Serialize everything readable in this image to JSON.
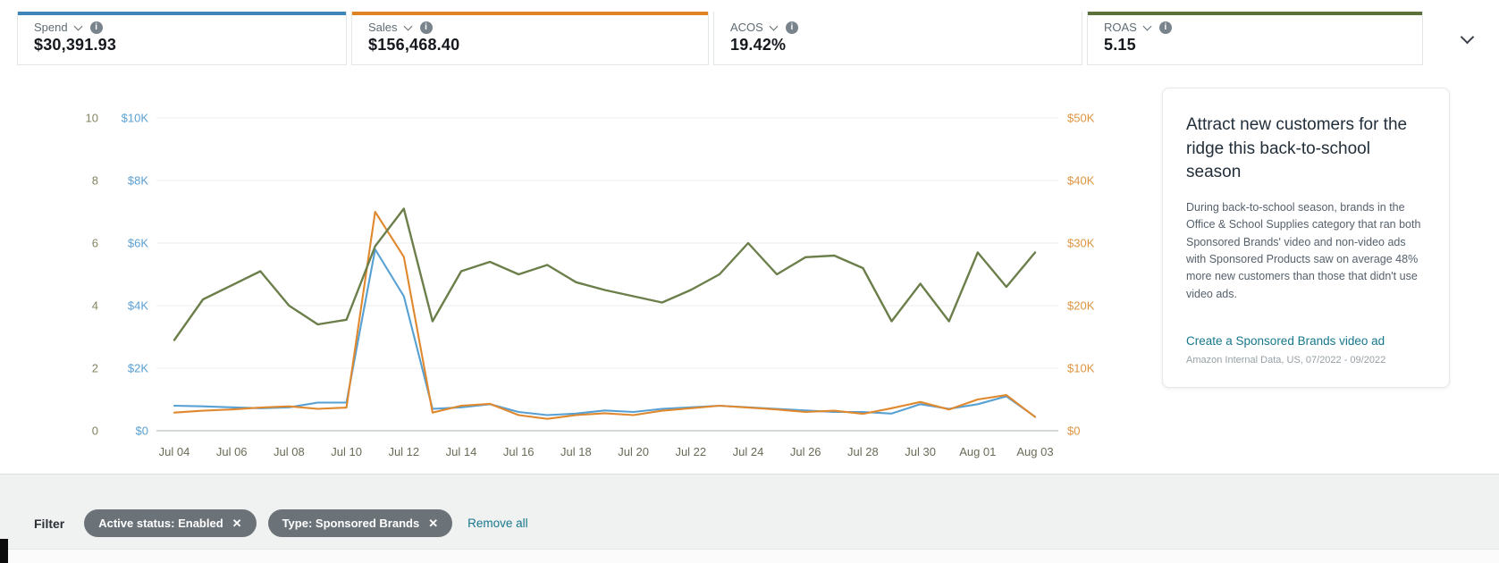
{
  "icons": {
    "close": "✕",
    "info": "i"
  },
  "metric_cards": [
    {
      "label": "Spend",
      "value": "$30,391.93",
      "accent": "#3d87b8"
    },
    {
      "label": "Sales",
      "value": "$156,468.40",
      "accent": "#e0821f"
    },
    {
      "label": "ACOS",
      "value": "19.42%",
      "accent": ""
    },
    {
      "label": "ROAS",
      "value": "5.15",
      "accent": "#5c7038"
    }
  ],
  "chart_data": {
    "type": "line",
    "x": [
      "Jul 04",
      "Jul 05",
      "Jul 06",
      "Jul 07",
      "Jul 08",
      "Jul 09",
      "Jul 10",
      "Jul 11",
      "Jul 12",
      "Jul 13",
      "Jul 14",
      "Jul 15",
      "Jul 16",
      "Jul 17",
      "Jul 18",
      "Jul 19",
      "Jul 20",
      "Jul 21",
      "Jul 22",
      "Jul 23",
      "Jul 24",
      "Jul 25",
      "Jul 26",
      "Jul 27",
      "Jul 28",
      "Jul 29",
      "Jul 30",
      "Jul 31",
      "Aug 01",
      "Aug 02",
      "Aug 03"
    ],
    "x_tick_labels": [
      "Jul 04",
      "Jul 06",
      "Jul 08",
      "Jul 10",
      "Jul 12",
      "Jul 14",
      "Jul 16",
      "Jul 18",
      "Jul 20",
      "Jul 22",
      "Jul 24",
      "Jul 26",
      "Jul 28",
      "Jul 30",
      "Aug 01",
      "Aug 03"
    ],
    "series": [
      {
        "name": "Spend",
        "axis": "left_currency",
        "color": "#56a0d3",
        "values": [
          800,
          780,
          750,
          720,
          750,
          900,
          900,
          5800,
          4300,
          700,
          750,
          850,
          600,
          500,
          550,
          650,
          600,
          700,
          750,
          800,
          750,
          700,
          650,
          600,
          600,
          550,
          850,
          700,
          850,
          1100,
          450
        ]
      },
      {
        "name": "Sales",
        "axis": "right_currency",
        "color": "#e0882e",
        "values": [
          2900,
          3200,
          3400,
          3700,
          3900,
          3500,
          3700,
          35000,
          27800,
          2900,
          4000,
          4300,
          2500,
          1900,
          2500,
          2800,
          2500,
          3200,
          3600,
          4000,
          3700,
          3400,
          3000,
          3200,
          2700,
          3600,
          4600,
          3400,
          5000,
          5700,
          2200
        ]
      },
      {
        "name": "ROAS",
        "axis": "left_ratio",
        "color": "#6c7f4b",
        "values": [
          2.9,
          4.2,
          4.65,
          5.1,
          4.0,
          3.4,
          3.55,
          5.9,
          7.1,
          3.5,
          5.1,
          5.4,
          5.0,
          5.3,
          4.75,
          4.5,
          4.3,
          4.1,
          4.5,
          5.0,
          6.0,
          5.0,
          5.55,
          5.6,
          5.2,
          3.5,
          4.7,
          3.5,
          5.7,
          4.6,
          5.7
        ]
      }
    ],
    "axes": {
      "left_ratio": {
        "ticks": [
          "0",
          "2",
          "4",
          "6",
          "8",
          "10"
        ],
        "min": 0,
        "max": 10,
        "color": "#84845f"
      },
      "left_currency": {
        "ticks": [
          "$0",
          "$2K",
          "$4K",
          "$6K",
          "$8K",
          "$10K"
        ],
        "min": 0,
        "max": 10000,
        "color": "#5b9fd2"
      },
      "right_currency": {
        "ticks": [
          "$0",
          "$10K",
          "$20K",
          "$30K",
          "$40K",
          "$50K"
        ],
        "min": 0,
        "max": 50000,
        "color": "#dd9440"
      }
    },
    "grid": true,
    "grid_color": "#ededed",
    "baseline_color": "#c6cbcb",
    "tick_label_color": "#6a6a57",
    "legend_position": "none",
    "title": ""
  },
  "promo_card": {
    "title": "Attract new customers for the ridge this back-to-school season",
    "body": "During back-to-school season, brands in the Office & School Supplies category that ran both Sponsored Brands' video and non-video ads with Sponsored Products saw on average 48% more new customers than those that didn't use video ads.",
    "link": "Create a Sponsored Brands video ad",
    "attribution": "Amazon Internal Data, US, 07/2022 - 09/2022"
  },
  "filter_bar": {
    "label": "Filter",
    "chips": [
      {
        "text": "Active status: Enabled"
      },
      {
        "text": "Type: Sponsored Brands"
      }
    ],
    "remove_all": "Remove all"
  }
}
